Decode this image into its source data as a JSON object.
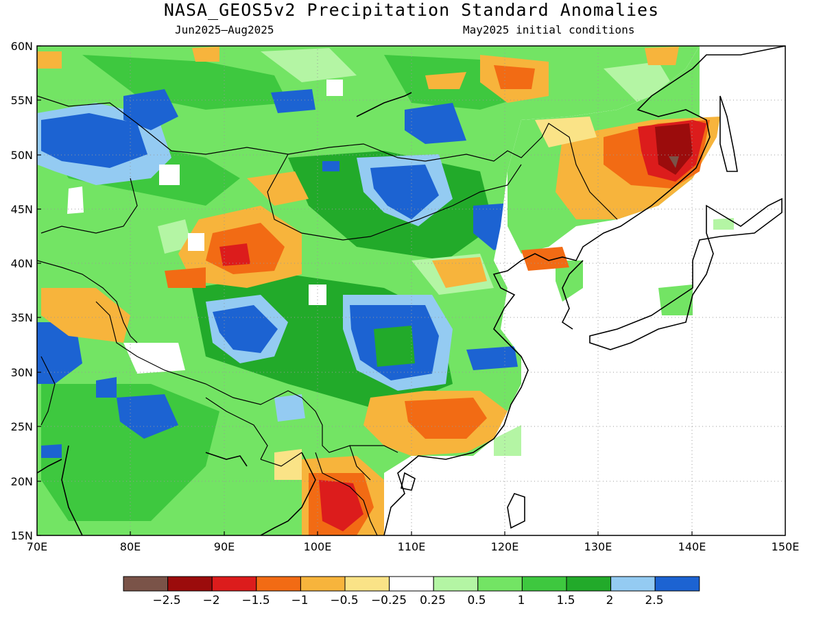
{
  "title": "NASA_GEOS5v2 Precipitation Standard Anomalies",
  "period": "Jun2025–Aug2025",
  "init": "May2025 initial conditions",
  "lat_labels": [
    "60N",
    "55N",
    "50N",
    "45N",
    "40N",
    "35N",
    "30N",
    "25N",
    "20N",
    "15N"
  ],
  "lon_labels": [
    "70E",
    "80E",
    "90E",
    "100E",
    "110E",
    "120E",
    "130E",
    "140E",
    "150E"
  ],
  "colorbar": {
    "colors": [
      "#7a5348",
      "#9b0c0c",
      "#dc1c1c",
      "#f26b14",
      "#f7b43c",
      "#fae387",
      "#ffffff",
      "#b4f5a4",
      "#73e464",
      "#3ec83f",
      "#22aa2a",
      "#94cbf2",
      "#1c63d2"
    ],
    "labels": [
      "−2.5",
      "−2",
      "−1.5",
      "−1",
      "−0.5",
      "−0.25",
      "0.25",
      "0.5",
      "1",
      "1.5",
      "2",
      "2.5"
    ]
  },
  "map": {
    "lon_range": [
      70,
      150
    ],
    "lat_range": [
      15,
      60
    ]
  }
}
